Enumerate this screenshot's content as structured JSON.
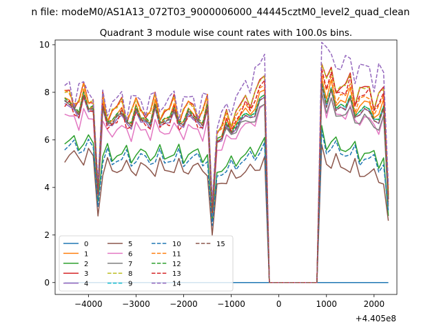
{
  "figure": {
    "suptitle": "n file: modeM0/AS1A13_072T03_9000006000_44445cztM0_level2_quad_clean"
  },
  "chart_data": {
    "type": "line",
    "title": "Quadrant 3 module wise count rates with 100.0s bins.",
    "xlabel": "",
    "ylabel": "",
    "x_offset_label": "+4.405e8",
    "xlim": [
      -4700,
      2480
    ],
    "ylim": [
      -0.5,
      10.2
    ],
    "xticks": [
      -4000,
      -3000,
      -2000,
      -1000,
      0,
      1000,
      2000
    ],
    "xtick_labels": [
      "−4000",
      "−3000",
      "−2000",
      "−1000",
      "0",
      "1000",
      "2000"
    ],
    "yticks": [
      0,
      2,
      4,
      6,
      8,
      10
    ],
    "ytick_labels": [
      "0",
      "2",
      "4",
      "6",
      "8",
      "10"
    ],
    "grid": false,
    "legend_position": "lower-left",
    "legend_columns": 4,
    "x": [
      -4500,
      -4400,
      -4300,
      -4200,
      -4100,
      -4000,
      -3900,
      -3800,
      -3700,
      -3600,
      -3500,
      -3400,
      -3300,
      -3200,
      -3100,
      -3000,
      -2900,
      -2800,
      -2700,
      -2600,
      -2500,
      -2400,
      -2300,
      -2200,
      -2100,
      -2000,
      -1900,
      -1800,
      -1700,
      -1600,
      -1500,
      -1400,
      -1300,
      -1200,
      -1100,
      -1000,
      -900,
      -800,
      -700,
      -600,
      -500,
      -400,
      -300,
      -200,
      -100,
      0,
      100,
      200,
      300,
      400,
      500,
      600,
      700,
      800,
      900,
      1000,
      1100,
      1200,
      1300,
      1400,
      1500,
      1600,
      1700,
      1800,
      1900,
      2000,
      2100,
      2200,
      2300
    ],
    "series": [
      {
        "name": "0",
        "color": "#1f77b4",
        "dash": "solid",
        "low": 0,
        "high": 0,
        "dip": 0,
        "ampA": 0,
        "ampB": 0,
        "end": 0
      },
      {
        "name": "1",
        "color": "#ff7f0e",
        "dash": "solid",
        "low": 7.0,
        "high": 7.8,
        "dip": 3.8,
        "ampA": 0.4,
        "ampB": 0.5,
        "end": 3.6
      },
      {
        "name": "2",
        "color": "#2ca02c",
        "dash": "solid",
        "low": 5.4,
        "high": 5.8,
        "dip": 3.4,
        "ampA": 0.3,
        "ampB": 0.3,
        "end": 2.8
      },
      {
        "name": "3",
        "color": "#d62728",
        "dash": "solid",
        "low": 7.3,
        "high": 8.4,
        "dip": 4.0,
        "ampA": 0.5,
        "ampB": 0.5,
        "end": 3.7
      },
      {
        "name": "4",
        "color": "#9467bd",
        "dash": "solid",
        "low": 6.8,
        "high": 7.5,
        "dip": 3.7,
        "ampA": 0.3,
        "ampB": 0.4,
        "end": 3.5
      },
      {
        "name": "5",
        "color": "#8c564b",
        "dash": "solid",
        "low": 4.8,
        "high": 5.0,
        "dip": 2.8,
        "ampA": 0.3,
        "ampB": 0.3,
        "end": 2.6
      },
      {
        "name": "6",
        "color": "#e377c2",
        "dash": "solid",
        "low": 6.4,
        "high": 7.2,
        "dip": 3.6,
        "ampA": 0.3,
        "ampB": 0.4,
        "end": 3.3
      },
      {
        "name": "7",
        "color": "#7f7f7f",
        "dash": "solid",
        "low": 6.9,
        "high": 7.2,
        "dip": 3.6,
        "ampA": 0.3,
        "ampB": 0.3,
        "end": 3.2
      },
      {
        "name": "8",
        "color": "#bcbd22",
        "dash": "dashed",
        "low": 7.3,
        "high": 8.4,
        "dip": 4.0,
        "ampA": 0.4,
        "ampB": 0.5,
        "end": 3.9
      },
      {
        "name": "9",
        "color": "#17becf",
        "dash": "dashed",
        "low": 6.9,
        "high": 7.6,
        "dip": 3.8,
        "ampA": 0.3,
        "ampB": 0.4,
        "end": 3.5
      },
      {
        "name": "10",
        "color": "#1f77b4",
        "dash": "dashed",
        "low": 5.2,
        "high": 5.6,
        "dip": 3.2,
        "ampA": 0.3,
        "ampB": 0.3,
        "end": 3.0
      },
      {
        "name": "11",
        "color": "#ff7f0e",
        "dash": "dashed",
        "low": 7.3,
        "high": 8.0,
        "dip": 4.0,
        "ampA": 0.4,
        "ampB": 0.5,
        "end": 3.8
      },
      {
        "name": "12",
        "color": "#2ca02c",
        "dash": "dashed",
        "low": 7.0,
        "high": 7.6,
        "dip": 3.8,
        "ampA": 0.3,
        "ampB": 0.4,
        "end": 3.6
      },
      {
        "name": "13",
        "color": "#d62728",
        "dash": "dashed",
        "low": 6.8,
        "high": 8.2,
        "dip": 3.7,
        "ampA": 0.4,
        "ampB": 0.5,
        "end": 3.5
      },
      {
        "name": "14",
        "color": "#9467bd",
        "dash": "dashed",
        "low": 7.6,
        "high": 9.3,
        "dip": 4.2,
        "ampA": 0.5,
        "ampB": 0.5,
        "end": 4.1
      },
      {
        "name": "15",
        "color": "#8c564b",
        "dash": "dashed",
        "low": 6.9,
        "high": 7.5,
        "dip": 3.8,
        "ampA": 0.3,
        "ampB": 0.4,
        "end": 3.4
      }
    ]
  }
}
